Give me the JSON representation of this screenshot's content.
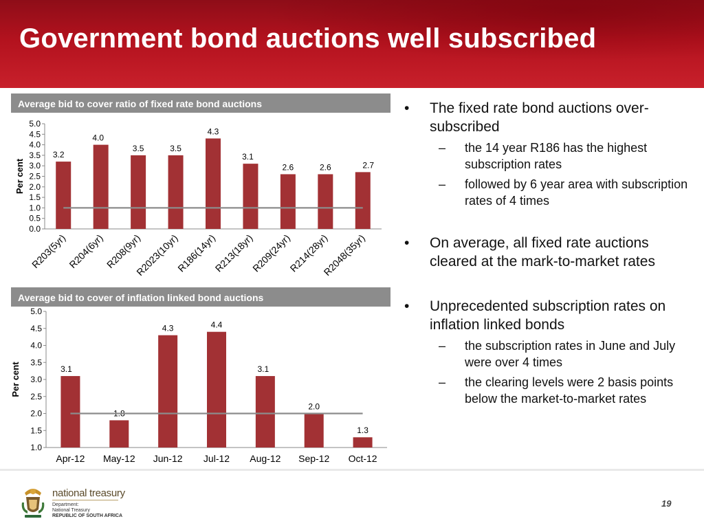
{
  "header": {
    "title": "Government bond auctions well subscribed"
  },
  "colors": {
    "bar": "#a23134",
    "average_line": "#8c8c8c",
    "header": "#b3121e",
    "panel_title_bg": "#8c8c8c"
  },
  "chart_data": [
    {
      "type": "bar",
      "title": "Average bid to cover ratio of fixed rate bond auctions",
      "ylabel": "Per cent",
      "categories": [
        "R203(5yr)",
        "R204(6yr)",
        "R208(9yr)",
        "R2023(10yr)",
        "R186(14yr)",
        "R213(18yr)",
        "R209(24yr)",
        "R214(28yr)",
        "R2048(35yr)"
      ],
      "values": [
        3.2,
        4.0,
        3.5,
        3.5,
        4.3,
        3.1,
        2.6,
        2.6,
        2.7
      ],
      "value_labels": [
        "3.2",
        "4.0",
        "3.5",
        "3.5",
        "4.3",
        "3.1",
        "2.6",
        "2.6",
        "2.7"
      ],
      "average_line": 1.0,
      "ylim": [
        0,
        5
      ],
      "yticks": [
        "0.0",
        "0.5",
        "1.0",
        "1.5",
        "2.0",
        "2.5",
        "3.0",
        "3.5",
        "4.0",
        "4.5",
        "5.0"
      ],
      "grid": false,
      "legend": "none"
    },
    {
      "type": "bar",
      "title": "Average bid to cover of inflation linked bond  auctions",
      "ylabel": "Per cent",
      "categories": [
        "Apr-12",
        "May-12",
        "Jun-12",
        "Jul-12",
        "Aug-12",
        "Sep-12",
        "Oct-12"
      ],
      "values": [
        3.1,
        1.8,
        4.3,
        4.4,
        3.1,
        2.0,
        1.3
      ],
      "value_labels": [
        "3.1",
        "1.8",
        "4.3",
        "4.4",
        "3.1",
        "2.0",
        "1.3"
      ],
      "average_line": 2.0,
      "ylim": [
        1,
        5
      ],
      "yticks": [
        "1.0",
        "1.5",
        "2.0",
        "2.5",
        "3.0",
        "3.5",
        "4.0",
        "4.5",
        "5.0"
      ],
      "grid": false,
      "legend": "none"
    }
  ],
  "bullets": [
    {
      "text": "The fixed rate bond auctions over-subscribed",
      "subs": [
        "the 14 year R186 has the highest subscription rates",
        "followed by 6 year area with subscription rates of 4 times"
      ]
    },
    {
      "text": "On average, all fixed rate auctions cleared at the mark-to-market rates",
      "subs": []
    },
    {
      "text": "Unprecedented subscription rates on inflation linked bonds",
      "subs": [
        "the subscription rates in June and July were over 4 times",
        "the clearing levels were 2 basis points below the market-to-market rates"
      ]
    }
  ],
  "bullet_symbol": "•",
  "dash_symbol": "–",
  "footer": {
    "logo_main": "national treasury",
    "logo_lines": [
      "Department:",
      "National Treasury",
      "REPUBLIC OF SOUTH AFRICA"
    ],
    "page_number": "19"
  }
}
